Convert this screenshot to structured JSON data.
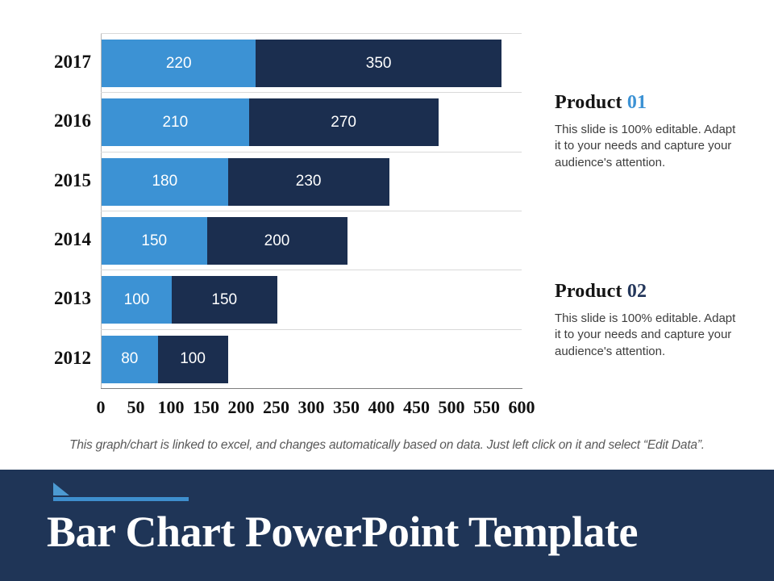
{
  "chart_data": {
    "type": "bar",
    "orientation": "horizontal",
    "stacked": true,
    "categories": [
      "2017",
      "2016",
      "2015",
      "2014",
      "2013",
      "2012"
    ],
    "series": [
      {
        "name": "Product 01",
        "color": "#3c92d4",
        "values": [
          220,
          210,
          180,
          150,
          100,
          80
        ]
      },
      {
        "name": "Product 02",
        "color": "#1b2e4f",
        "values": [
          350,
          270,
          230,
          200,
          150,
          100
        ]
      }
    ],
    "xlim": [
      0,
      600
    ],
    "xticks": [
      "0",
      "50",
      "100",
      "150",
      "200",
      "250",
      "300",
      "350",
      "400",
      "450",
      "500",
      "550",
      "600"
    ],
    "grid": "category-boundaries",
    "legend_position": "none"
  },
  "annotations": {
    "product1": {
      "title_main": "Product",
      "title_num": "01",
      "body": "This slide is 100% editable. Adapt it to your needs and capture your audience's attention."
    },
    "product2": {
      "title_main": "Product",
      "title_num": "02",
      "body": "This slide is 100% editable. Adapt it to your needs and capture your audience's attention."
    }
  },
  "footer_note": "This graph/chart is linked to excel,  and changes automatically based on data. Just left click on it and select “Edit Data”.",
  "title_bar": {
    "title": "Bar Chart PowerPoint Template"
  },
  "colors": {
    "series1": "#3c92d4",
    "series2": "#1b2e4f",
    "band": "#1f3557",
    "accent_line": "#3e8fce",
    "gridline": "#d9d9d9",
    "axis_line": "#7f7f7f"
  }
}
